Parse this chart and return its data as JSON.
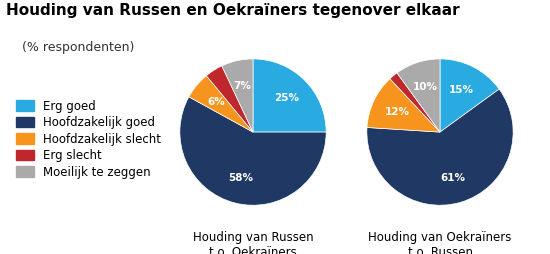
{
  "title": "Houding van Russen en Oekraïners tegenover elkaar",
  "subtitle": "(% respondenten)",
  "legend_labels": [
    "Erg goed",
    "Hoofdzakelijk goed",
    "Hoofdzakelijk slecht",
    "Erg slecht",
    "Moeilijk te zeggen"
  ],
  "colors": [
    "#29ABE2",
    "#1F3864",
    "#F7941D",
    "#C0272D",
    "#AAAAAA"
  ],
  "pie1": {
    "values": [
      25,
      58,
      6,
      4,
      7
    ],
    "labels": [
      "25%",
      "58%",
      "6%",
      "",
      "7%"
    ],
    "title_line1": "Houding van Russen",
    "title_line2": "t.o. Oekraïners"
  },
  "pie2": {
    "values": [
      15,
      61,
      12,
      2,
      10
    ],
    "labels": [
      "15%",
      "61%",
      "12%",
      "",
      "10%"
    ],
    "title_line1": "Houding van Oekraïners",
    "title_line2": "t.o. Russen"
  },
  "background_color": "#FFFFFF",
  "title_fontsize": 11,
  "subtitle_fontsize": 9,
  "legend_fontsize": 8.5,
  "pie_label_fontsize": 7.5,
  "pie_xlabel_fontsize": 8.5
}
